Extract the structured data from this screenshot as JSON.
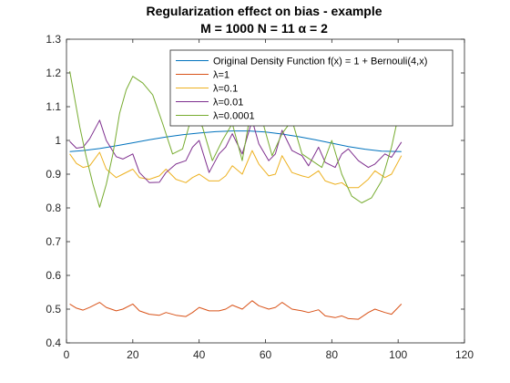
{
  "chart_data": {
    "type": "line",
    "title_line1": "Regularization effect on bias - example",
    "title_line2": "M = 1000 N = 11 α = 2",
    "xlabel": "",
    "ylabel": "",
    "xlim": [
      0,
      120
    ],
    "ylim": [
      0.4,
      1.3
    ],
    "xticks": [
      "0",
      "20",
      "40",
      "60",
      "80",
      "100",
      "120"
    ],
    "yticks": [
      "0.4",
      "0.5",
      "0.6",
      "0.7",
      "0.8",
      "0.9",
      "1",
      "1.1",
      "1.2",
      "1.3"
    ],
    "grid": false,
    "legend_position": "top-right",
    "series": [
      {
        "name": "Original Density Function f(x) = 1 + Bernouli(4,x)",
        "color": "#0072BD",
        "x": [
          1,
          5,
          10,
          15,
          20,
          25,
          30,
          35,
          40,
          45,
          50,
          55,
          60,
          65,
          70,
          75,
          80,
          85,
          90,
          95,
          101
        ],
        "y": [
          0.967,
          0.97,
          0.976,
          0.984,
          0.993,
          1.002,
          1.01,
          1.017,
          1.022,
          1.026,
          1.028,
          1.028,
          1.025,
          1.019,
          1.011,
          1.002,
          0.992,
          0.982,
          0.974,
          0.968,
          0.967
        ]
      },
      {
        "name": "λ=1",
        "color": "#D95319",
        "x": [
          1,
          3,
          5,
          7,
          10,
          12,
          15,
          17,
          20,
          22,
          25,
          28,
          30,
          33,
          36,
          38,
          40,
          43,
          46,
          48,
          50,
          53,
          56,
          58,
          61,
          63,
          65,
          68,
          71,
          73,
          76,
          78,
          81,
          83,
          85,
          88,
          91,
          93,
          96,
          98,
          101
        ],
        "y": [
          0.515,
          0.503,
          0.497,
          0.505,
          0.52,
          0.505,
          0.495,
          0.5,
          0.515,
          0.495,
          0.485,
          0.482,
          0.49,
          0.482,
          0.478,
          0.49,
          0.505,
          0.495,
          0.495,
          0.5,
          0.512,
          0.5,
          0.525,
          0.51,
          0.5,
          0.505,
          0.52,
          0.5,
          0.495,
          0.49,
          0.498,
          0.48,
          0.475,
          0.48,
          0.472,
          0.47,
          0.49,
          0.5,
          0.49,
          0.485,
          0.515
        ]
      },
      {
        "name": "λ=0.1",
        "color": "#EDB120",
        "x": [
          1,
          3,
          5,
          7,
          10,
          12,
          15,
          17,
          20,
          22,
          25,
          28,
          30,
          33,
          36,
          38,
          40,
          43,
          46,
          48,
          50,
          53,
          56,
          58,
          61,
          63,
          65,
          68,
          71,
          73,
          76,
          78,
          81,
          83,
          85,
          88,
          91,
          93,
          96,
          98,
          101
        ],
        "y": [
          0.96,
          0.932,
          0.92,
          0.925,
          0.965,
          0.915,
          0.89,
          0.9,
          0.915,
          0.89,
          0.885,
          0.895,
          0.915,
          0.885,
          0.875,
          0.89,
          0.9,
          0.88,
          0.88,
          0.895,
          0.925,
          0.9,
          0.97,
          0.93,
          0.895,
          0.9,
          0.955,
          0.905,
          0.895,
          0.89,
          0.91,
          0.88,
          0.87,
          0.875,
          0.86,
          0.86,
          0.885,
          0.91,
          0.89,
          0.9,
          0.955
        ]
      },
      {
        "name": "λ=0.01",
        "color": "#7E2F8E",
        "x": [
          1,
          3,
          5,
          7,
          10,
          12,
          15,
          17,
          20,
          22,
          25,
          28,
          30,
          33,
          36,
          38,
          40,
          43,
          46,
          48,
          50,
          53,
          56,
          58,
          61,
          63,
          65,
          68,
          71,
          73,
          76,
          78,
          81,
          83,
          85,
          88,
          91,
          93,
          96,
          98,
          101
        ],
        "y": [
          0.997,
          0.977,
          0.98,
          1.005,
          1.06,
          1.0,
          0.952,
          0.945,
          0.96,
          0.905,
          0.875,
          0.876,
          0.905,
          0.93,
          0.94,
          0.98,
          1.0,
          0.905,
          0.96,
          0.98,
          1.02,
          0.96,
          1.06,
          0.99,
          0.94,
          0.96,
          1.03,
          0.97,
          0.955,
          0.925,
          0.98,
          0.935,
          0.92,
          0.96,
          0.975,
          0.94,
          0.92,
          0.93,
          0.96,
          0.95,
          0.995
        ]
      },
      {
        "name": "λ=0.0001",
        "color": "#77AC30",
        "x": [
          1,
          2,
          4,
          6,
          8,
          10,
          12,
          14,
          16,
          18,
          20,
          23,
          26,
          29,
          32,
          35,
          38,
          41,
          44,
          47,
          50,
          53,
          56,
          59,
          62,
          65,
          68,
          71,
          74,
          77,
          80,
          83,
          86,
          89,
          92,
          95,
          98,
          101
        ],
        "y": [
          1.205,
          1.15,
          1.04,
          0.95,
          0.87,
          0.802,
          0.87,
          0.96,
          1.08,
          1.15,
          1.19,
          1.17,
          1.135,
          1.05,
          0.96,
          0.975,
          1.08,
          1.04,
          0.94,
          1.0,
          1.05,
          0.94,
          1.11,
          1.06,
          0.955,
          1.02,
          1.06,
          0.96,
          0.94,
          0.92,
          1.0,
          0.9,
          0.835,
          0.815,
          0.83,
          0.88,
          0.98,
          1.115
        ]
      }
    ]
  }
}
